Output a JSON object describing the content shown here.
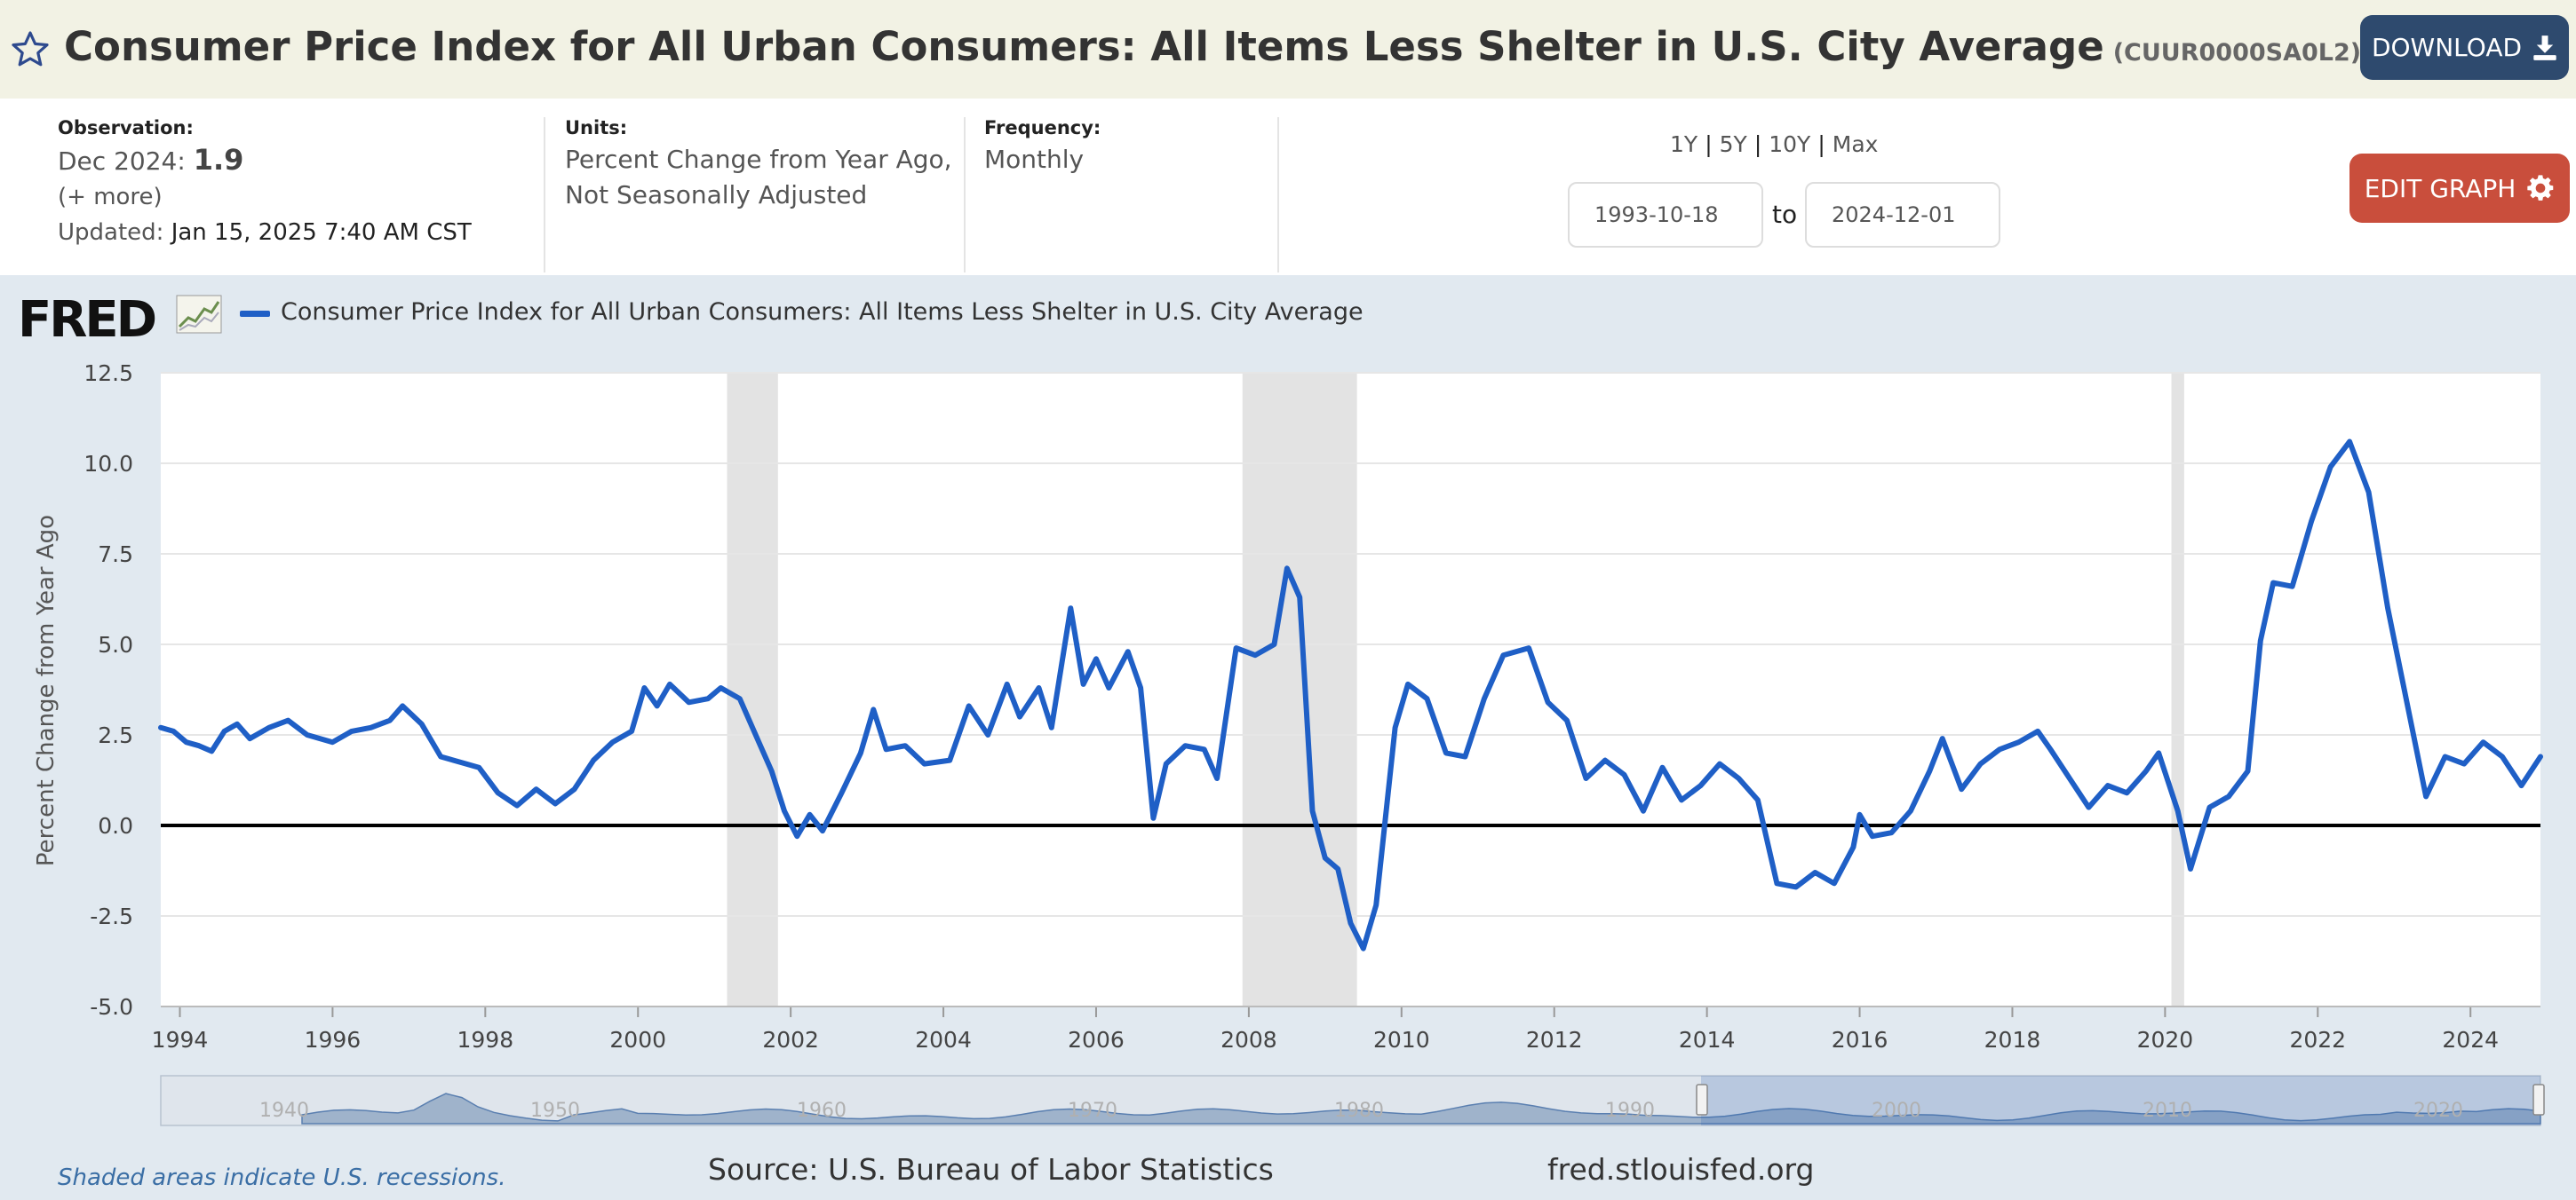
{
  "header": {
    "title": "Consumer Price Index for All Urban Consumers: All Items Less Shelter in U.S. City Average",
    "series_id": "(CUUR0000SA0L2)",
    "download_label": "DOWNLOAD",
    "star_icon": "star-icon",
    "download_icon": "download-icon"
  },
  "meta": {
    "observation_label": "Observation:",
    "observation_date": "Dec 2024:",
    "observation_value": "1.9",
    "more_link": "(+ more)",
    "updated_label": "Updated:",
    "updated_value": "Jan 15, 2025 7:40 AM CST",
    "units_label": "Units:",
    "units_line1": "Percent Change from Year Ago,",
    "units_line2": "Not Seasonally Adjusted",
    "frequency_label": "Frequency:",
    "frequency_value": "Monthly"
  },
  "controls": {
    "range_1y": "1Y",
    "range_5y": "5Y",
    "range_10y": "10Y",
    "range_max": "Max",
    "separator": "|",
    "start_date": "1993-10-18",
    "to_label": "to",
    "end_date": "2024-12-01",
    "edit_graph_label": "EDIT GRAPH",
    "gear_icon": "gear-icon"
  },
  "legend": {
    "logo_text": "FRED",
    "series_name": "Consumer Price Index for All Urban Consumers: All Items Less Shelter in U.S. City Average",
    "color": "#1f5fc6"
  },
  "footer": {
    "recession_note": "Shaded areas indicate U.S. recessions.",
    "source": "Source: U.S. Bureau of Labor Statistics",
    "url": "fred.stlouisfed.org"
  },
  "chart_data": {
    "type": "line",
    "title": "",
    "xlabel": "",
    "ylabel": "Percent Change from Year Ago",
    "xlim": [
      "1993-10",
      "2024-12"
    ],
    "ylim": [
      -5.0,
      12.5
    ],
    "y_ticks": [
      "12.5",
      "10.0",
      "7.5",
      "5.0",
      "2.5",
      "0.0",
      "-2.5",
      "-5.0"
    ],
    "x_ticks": [
      "1994",
      "1996",
      "1998",
      "2000",
      "2002",
      "2004",
      "2006",
      "2008",
      "2010",
      "2012",
      "2014",
      "2016",
      "2018",
      "2020",
      "2022",
      "2024"
    ],
    "grid": true,
    "zero_line": true,
    "line_color": "#1f5fc6",
    "recessions": [
      [
        "2001-03",
        "2001-11"
      ],
      [
        "2007-12",
        "2009-06"
      ],
      [
        "2020-02",
        "2020-04"
      ]
    ],
    "navigator_years": [
      "1940",
      "1950",
      "1960",
      "1970",
      "1980",
      "1990",
      "2000",
      "2010",
      "2020"
    ],
    "series": [
      {
        "name": "Consumer Price Index for All Urban Consumers: All Items Less Shelter in U.S. City Average",
        "points": [
          [
            "1993-10",
            2.7
          ],
          [
            "1993-12",
            2.6
          ],
          [
            "1994-02",
            2.3
          ],
          [
            "1994-04",
            2.2
          ],
          [
            "1994-06",
            2.05
          ],
          [
            "1994-08",
            2.6
          ],
          [
            "1994-10",
            2.8
          ],
          [
            "1994-12",
            2.4
          ],
          [
            "1995-03",
            2.7
          ],
          [
            "1995-06",
            2.9
          ],
          [
            "1995-09",
            2.5
          ],
          [
            "1995-11",
            2.4
          ],
          [
            "1996-01",
            2.3
          ],
          [
            "1996-04",
            2.6
          ],
          [
            "1996-07",
            2.7
          ],
          [
            "1996-10",
            2.9
          ],
          [
            "1996-12",
            3.3
          ],
          [
            "1997-03",
            2.8
          ],
          [
            "1997-06",
            1.9
          ],
          [
            "1997-09",
            1.75
          ],
          [
            "1997-12",
            1.6
          ],
          [
            "1998-03",
            0.9
          ],
          [
            "1998-06",
            0.55
          ],
          [
            "1998-09",
            1.0
          ],
          [
            "1998-12",
            0.6
          ],
          [
            "1999-03",
            1.0
          ],
          [
            "1999-06",
            1.8
          ],
          [
            "1999-09",
            2.3
          ],
          [
            "1999-12",
            2.6
          ],
          [
            "2000-02",
            3.8
          ],
          [
            "2000-04",
            3.3
          ],
          [
            "2000-06",
            3.9
          ],
          [
            "2000-09",
            3.4
          ],
          [
            "2000-12",
            3.5
          ],
          [
            "2001-02",
            3.8
          ],
          [
            "2001-05",
            3.5
          ],
          [
            "2001-08",
            2.3
          ],
          [
            "2001-10",
            1.5
          ],
          [
            "2001-12",
            0.4
          ],
          [
            "2002-02",
            -0.3
          ],
          [
            "2002-04",
            0.3
          ],
          [
            "2002-06",
            -0.15
          ],
          [
            "2002-09",
            0.9
          ],
          [
            "2002-12",
            2.0
          ],
          [
            "2003-02",
            3.2
          ],
          [
            "2003-04",
            2.1
          ],
          [
            "2003-07",
            2.2
          ],
          [
            "2003-10",
            1.7
          ],
          [
            "2004-02",
            1.8
          ],
          [
            "2004-05",
            3.3
          ],
          [
            "2004-08",
            2.5
          ],
          [
            "2004-11",
            3.9
          ],
          [
            "2005-01",
            3.0
          ],
          [
            "2005-04",
            3.8
          ],
          [
            "2005-06",
            2.7
          ],
          [
            "2005-09",
            6.0
          ],
          [
            "2005-11",
            3.9
          ],
          [
            "2006-01",
            4.6
          ],
          [
            "2006-03",
            3.8
          ],
          [
            "2006-06",
            4.8
          ],
          [
            "2006-08",
            3.8
          ],
          [
            "2006-10",
            0.2
          ],
          [
            "2006-12",
            1.7
          ],
          [
            "2007-03",
            2.2
          ],
          [
            "2007-06",
            2.1
          ],
          [
            "2007-08",
            1.3
          ],
          [
            "2007-11",
            4.9
          ],
          [
            "2008-02",
            4.7
          ],
          [
            "2008-05",
            5.0
          ],
          [
            "2008-07",
            7.1
          ],
          [
            "2008-09",
            6.3
          ],
          [
            "2008-11",
            0.4
          ],
          [
            "2009-01",
            -0.9
          ],
          [
            "2009-03",
            -1.2
          ],
          [
            "2009-05",
            -2.7
          ],
          [
            "2009-07",
            -3.4
          ],
          [
            "2009-09",
            -2.2
          ],
          [
            "2009-12",
            2.7
          ],
          [
            "2010-02",
            3.9
          ],
          [
            "2010-05",
            3.5
          ],
          [
            "2010-08",
            2.0
          ],
          [
            "2010-11",
            1.9
          ],
          [
            "2011-02",
            3.5
          ],
          [
            "2011-05",
            4.7
          ],
          [
            "2011-09",
            4.9
          ],
          [
            "2011-12",
            3.4
          ],
          [
            "2012-03",
            2.9
          ],
          [
            "2012-06",
            1.3
          ],
          [
            "2012-09",
            1.8
          ],
          [
            "2012-12",
            1.4
          ],
          [
            "2013-03",
            0.4
          ],
          [
            "2013-06",
            1.6
          ],
          [
            "2013-09",
            0.7
          ],
          [
            "2013-12",
            1.1
          ],
          [
            "2014-03",
            1.7
          ],
          [
            "2014-06",
            1.3
          ],
          [
            "2014-09",
            0.7
          ],
          [
            "2014-12",
            -1.6
          ],
          [
            "2015-03",
            -1.7
          ],
          [
            "2015-06",
            -1.3
          ],
          [
            "2015-09",
            -1.6
          ],
          [
            "2015-12",
            -0.6
          ],
          [
            "2016-01",
            0.3
          ],
          [
            "2016-03",
            -0.3
          ],
          [
            "2016-06",
            -0.2
          ],
          [
            "2016-09",
            0.4
          ],
          [
            "2016-12",
            1.5
          ],
          [
            "2017-02",
            2.4
          ],
          [
            "2017-05",
            1.0
          ],
          [
            "2017-08",
            1.7
          ],
          [
            "2017-11",
            2.1
          ],
          [
            "2018-02",
            2.3
          ],
          [
            "2018-05",
            2.6
          ],
          [
            "2018-07",
            2.1
          ],
          [
            "2018-10",
            1.3
          ],
          [
            "2019-01",
            0.5
          ],
          [
            "2019-04",
            1.1
          ],
          [
            "2019-07",
            0.9
          ],
          [
            "2019-10",
            1.5
          ],
          [
            "2019-12",
            2.0
          ],
          [
            "2020-03",
            0.4
          ],
          [
            "2020-05",
            -1.2
          ],
          [
            "2020-08",
            0.5
          ],
          [
            "2020-11",
            0.8
          ],
          [
            "2021-02",
            1.5
          ],
          [
            "2021-04",
            5.1
          ],
          [
            "2021-06",
            6.7
          ],
          [
            "2021-09",
            6.6
          ],
          [
            "2021-12",
            8.4
          ],
          [
            "2022-03",
            9.9
          ],
          [
            "2022-06",
            10.6
          ],
          [
            "2022-09",
            9.2
          ],
          [
            "2022-12",
            6.0
          ],
          [
            "2023-03",
            3.4
          ],
          [
            "2023-06",
            0.8
          ],
          [
            "2023-09",
            1.9
          ],
          [
            "2023-12",
            1.7
          ],
          [
            "2024-03",
            2.3
          ],
          [
            "2024-06",
            1.9
          ],
          [
            "2024-09",
            1.1
          ],
          [
            "2024-12",
            1.9
          ]
        ]
      }
    ]
  }
}
